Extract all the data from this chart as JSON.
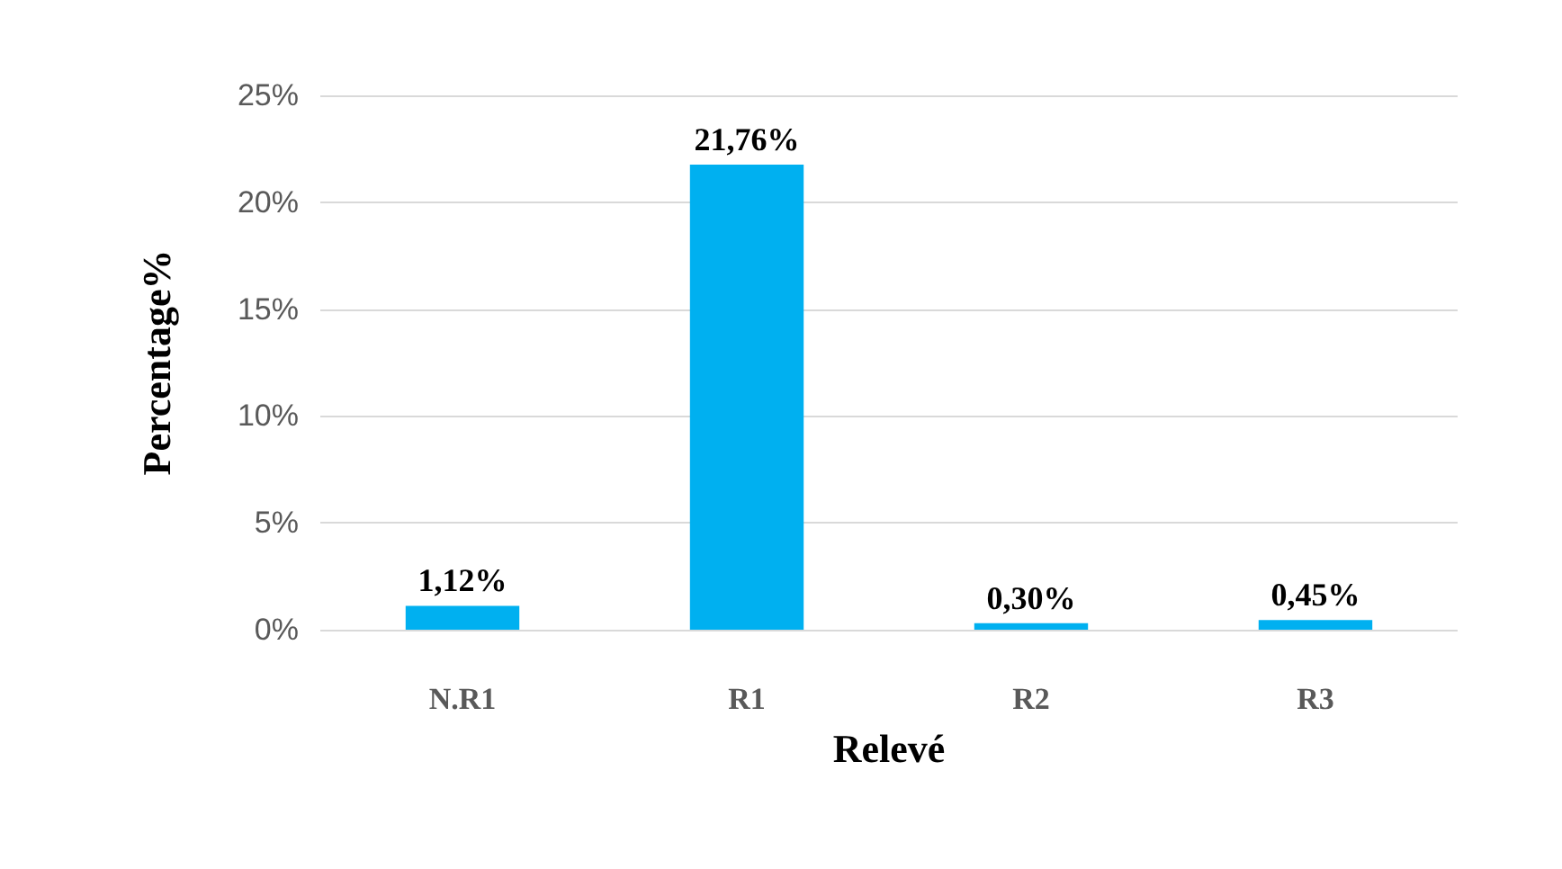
{
  "chart_data": {
    "type": "bar",
    "xlabel": "Relevé",
    "ylabel": "Percentage%",
    "categories": [
      "N.R1",
      "R1",
      "R2",
      "R3"
    ],
    "values": [
      1.12,
      21.76,
      0.3,
      0.45
    ],
    "value_labels": [
      "1,12%",
      "21,76%",
      "0,30%",
      "0,45%"
    ],
    "color": "#00b0f0",
    "ylim": [
      0,
      25
    ],
    "yticks": [
      {
        "value": 0,
        "label": "0%"
      },
      {
        "value": 5,
        "label": "5%"
      },
      {
        "value": 10,
        "label": "10%"
      },
      {
        "value": 15,
        "label": "15%"
      },
      {
        "value": 20,
        "label": "20%"
      },
      {
        "value": 25,
        "label": "25%"
      }
    ],
    "grid": "y"
  }
}
